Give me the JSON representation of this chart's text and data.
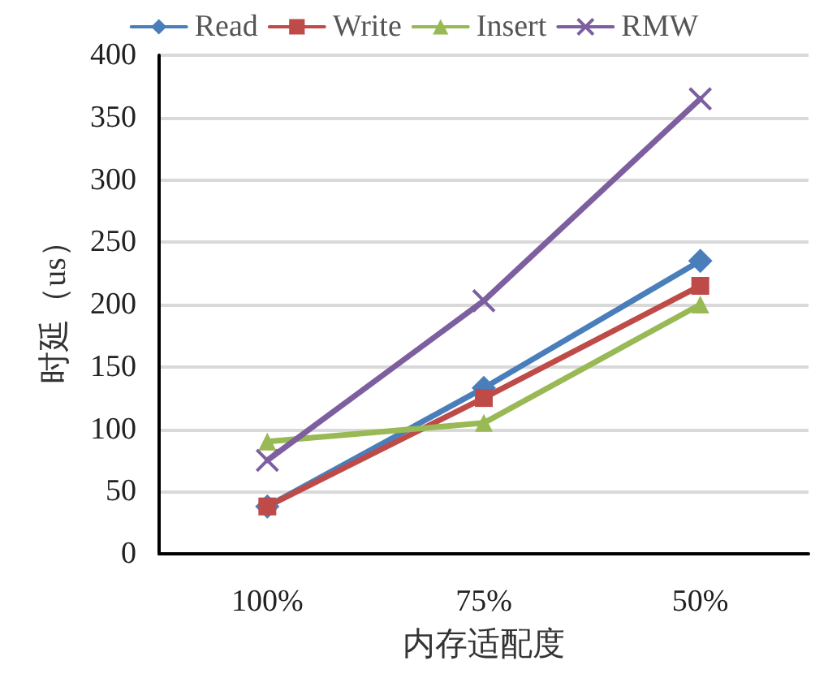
{
  "chart_data": {
    "type": "line",
    "xlabel": "内存适配度",
    "ylabel": "时延（us）",
    "categories": [
      "100%",
      "75%",
      "50%"
    ],
    "series": [
      {
        "name": "Read",
        "color": "#4a7ebb",
        "marker": "diamond",
        "values": [
          38,
          133,
          235
        ]
      },
      {
        "name": "Write",
        "color": "#be4b48",
        "marker": "square",
        "values": [
          38,
          125,
          215
        ]
      },
      {
        "name": "Insert",
        "color": "#98b954",
        "marker": "triangle",
        "values": [
          90,
          105,
          200
        ]
      },
      {
        "name": "RMW",
        "color": "#7d5fa0",
        "marker": "cross",
        "values": [
          75,
          203,
          365
        ]
      }
    ],
    "ylim": [
      0,
      400
    ],
    "yticks": [
      0,
      50,
      100,
      150,
      200,
      250,
      300,
      350,
      400
    ],
    "grid": "y",
    "legend": "top"
  }
}
